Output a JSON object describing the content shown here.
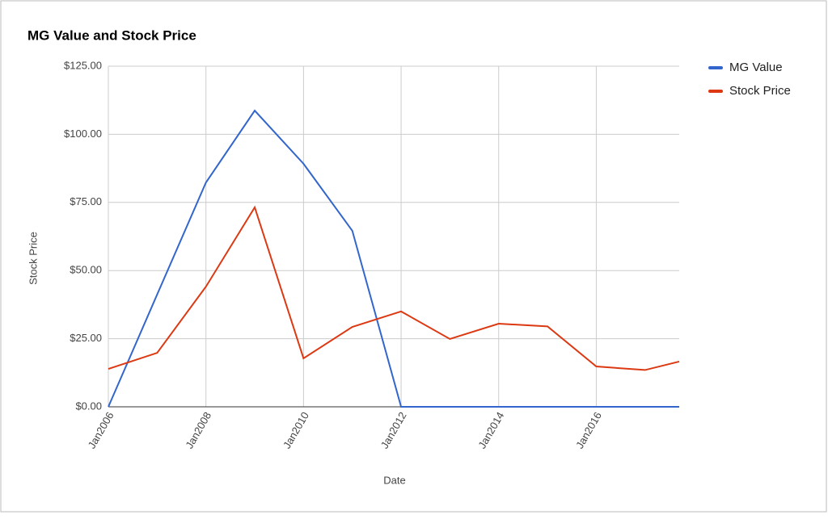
{
  "chart_data": {
    "type": "line",
    "title": "MG Value and Stock Price",
    "x_label": "Date",
    "y_label": "Stock Price",
    "x": [
      2006,
      2007,
      2008,
      2009,
      2010,
      2011,
      2012,
      2013,
      2014,
      2015,
      2016,
      2017,
      2017.7
    ],
    "series": [
      {
        "name": "MG Value",
        "color": "#3366cc",
        "values": [
          0,
          41.2,
          82.3,
          108.7,
          89.2,
          64.6,
          0,
          0,
          0,
          0,
          0,
          0,
          0
        ]
      },
      {
        "name": "Stock Price",
        "color": "#dc3912",
        "values": [
          13.9,
          19.8,
          44.1,
          73.2,
          17.8,
          29.3,
          35,
          24.9,
          30.5,
          29.5,
          14.8,
          13.5,
          16.6
        ]
      }
    ],
    "xlim": [
      2006,
      2017.7
    ],
    "xticks": [
      {
        "value": 2006,
        "label": "Jan2006"
      },
      {
        "value": 2008,
        "label": "Jan2008"
      },
      {
        "value": 2010,
        "label": "Jan2010"
      },
      {
        "value": 2012,
        "label": "Jan2012"
      },
      {
        "value": 2014,
        "label": "Jan2014"
      },
      {
        "value": 2016,
        "label": "Jan2016"
      }
    ],
    "ylim": [
      0,
      125
    ],
    "yticks": [
      {
        "value": 0,
        "label": "$0.00"
      },
      {
        "value": 25,
        "label": "$25.00"
      },
      {
        "value": 50,
        "label": "$50.00"
      },
      {
        "value": 75,
        "label": "$75.00"
      },
      {
        "value": 100,
        "label": "$100.00"
      },
      {
        "value": 125,
        "label": "$125.00"
      }
    ],
    "grid": true,
    "legend": "right"
  }
}
